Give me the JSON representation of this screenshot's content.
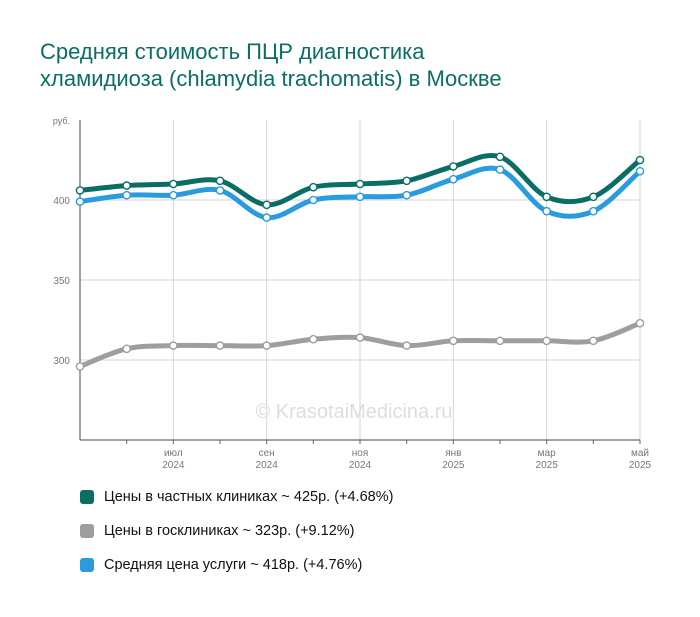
{
  "title_lines": [
    "Средняя стоимость ПЦР диагностика",
    "хламидиоза (chlamydia trachomatis) в Москве"
  ],
  "watermark": "© KrasotaiMedicina.ru",
  "colors": {
    "private": "#0b6e64",
    "public": "#9e9e9e",
    "average": "#2b9be0"
  },
  "legend": [
    {
      "label": "Цены в частных клиниках ~ 425р. (+4.68%)",
      "color": "#0b6e64"
    },
    {
      "label": "Цены в госклиниках ~ 323р. (+9.12%)",
      "color": "#9e9e9e"
    },
    {
      "label": "Средняя цена услуги ~ 418р. (+4.76%)",
      "color": "#2b9be0"
    }
  ],
  "chart_data": {
    "type": "line",
    "y_unit": "руб.",
    "ylim": [
      250,
      450
    ],
    "yticks": [
      300,
      350,
      400
    ],
    "grid": true,
    "x": [
      "2024-05",
      "2024-06",
      "2024-07",
      "2024-08",
      "2024-09",
      "2024-10",
      "2024-11",
      "2024-12",
      "2025-01",
      "2025-02",
      "2025-03",
      "2025-04",
      "2025-05"
    ],
    "x_tick_labels": [
      {
        "month": "июл",
        "year": "2024",
        "index": 2
      },
      {
        "month": "сен",
        "year": "2024",
        "index": 4
      },
      {
        "month": "ноя",
        "year": "2024",
        "index": 6
      },
      {
        "month": "янв",
        "year": "2025",
        "index": 8
      },
      {
        "month": "мар",
        "year": "2025",
        "index": 10
      },
      {
        "month": "май",
        "year": "2025",
        "index": 12
      }
    ],
    "series": [
      {
        "key": "public",
        "values": [
          296,
          307,
          309,
          309,
          309,
          313,
          314,
          309,
          312,
          312,
          312,
          312,
          323
        ]
      },
      {
        "key": "average",
        "values": [
          399,
          403,
          403,
          406,
          389,
          400,
          402,
          403,
          413,
          419,
          393,
          393,
          418
        ]
      },
      {
        "key": "private",
        "values": [
          406,
          409,
          410,
          412,
          397,
          408,
          410,
          412,
          421,
          427,
          402,
          402,
          425
        ]
      }
    ]
  }
}
